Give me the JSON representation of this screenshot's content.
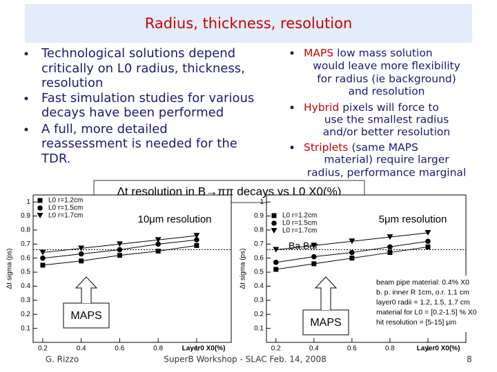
{
  "title": "Radius, thickness, resolution",
  "left_bullets": [
    {
      "lines": [
        "Technological solutions depend",
        "critically on L0 radius, thickness,",
        "resolution"
      ]
    },
    {
      "lines": [
        "Fast simulation studies for various",
        "decays have been performed"
      ]
    },
    {
      "lines": [
        "A full, more detailed",
        "reassessment is needed for the",
        "TDR."
      ]
    }
  ],
  "right_bullets": [
    {
      "keyword": "MAPS",
      "lines": [
        "low mass solution",
        "would leave more flexibility",
        "for radius (ie background)",
        "and resolution"
      ]
    },
    {
      "keyword": "Hybrid",
      "lines": [
        "pixels will force to",
        "use the smallest radius",
        "and/or better resolution"
      ]
    },
    {
      "keyword": "Striplets",
      "lines": [
        "(same MAPS",
        "material) require larger",
        "radius, performance marginal"
      ]
    }
  ],
  "section_title": "Δt resolution in B→ππ decays vs L0 X0(%)",
  "plots": [
    {
      "type": "scatter",
      "title": "10μm resolution",
      "y_label": "Δt sigma (ps)",
      "x_label": "Layer0 X0(%)",
      "xlim": [
        0.15,
        1.18
      ],
      "ylim": [
        0,
        1.05
      ],
      "xticks": [
        0.2,
        0.4,
        0.6,
        0.8,
        1
      ],
      "yticks": [
        0.1,
        0.2,
        0.3,
        0.4,
        0.5,
        0.6,
        0.7,
        0.8,
        0.9,
        1
      ],
      "x": [
        0.2,
        0.4,
        0.6,
        0.8,
        1.0
      ],
      "reference": 0.66,
      "series": [
        {
          "name": "L0 r=1.2cm",
          "marker": "square",
          "values": [
            0.55,
            0.58,
            0.62,
            0.65,
            0.69
          ]
        },
        {
          "name": "L0 r=1.5cm",
          "marker": "circle",
          "values": [
            0.6,
            0.63,
            0.66,
            0.7,
            0.73
          ]
        },
        {
          "name": "L0 r=1.7cm",
          "marker": "triangle",
          "values": [
            0.64,
            0.67,
            0.7,
            0.73,
            0.76
          ]
        }
      ]
    },
    {
      "type": "scatter",
      "title": "5μm resolution",
      "y_label": "Δt sigma (ps)",
      "x_label": "Layer0 X0(%)",
      "reference_label": "Ba.Bar",
      "xlim": [
        0.15,
        1.2
      ],
      "ylim": [
        0,
        1.05
      ],
      "xticks": [
        0.2,
        0.4,
        0.6,
        0.8,
        1
      ],
      "yticks": [
        0.1,
        0.2,
        0.3,
        0.4,
        0.5,
        0.6,
        0.7,
        0.8,
        0.9,
        1
      ],
      "x": [
        0.2,
        0.4,
        0.6,
        0.8,
        1.0
      ],
      "reference": 0.66,
      "series": [
        {
          "name": "L0 r=1.2cm",
          "marker": "square",
          "values": [
            0.52,
            0.56,
            0.6,
            0.64,
            0.68
          ]
        },
        {
          "name": "L0 r=1.5cm",
          "marker": "circle",
          "values": [
            0.57,
            0.61,
            0.64,
            0.68,
            0.72
          ]
        },
        {
          "name": "L0 r=1.7cm",
          "marker": "triangle",
          "values": [
            0.66,
            0.69,
            0.72,
            0.75,
            0.78
          ]
        }
      ]
    }
  ],
  "callouts": [
    "MAPS",
    "MAPS"
  ],
  "notes": [
    "beam pipe material: 0.4% X0",
    "b. p. inner R 1cm, o.r. 1.1 cm",
    "layer0 radii = 1.2, 1.5, 1.7 cm",
    "material for L0 = [0.2-1.5] % X0",
    "hit resolution = [5-15] μm"
  ],
  "footer": {
    "author": "G. Rizzo",
    "event": "SuperB Workshop - SLAC Feb. 14, 2008",
    "page": "8"
  }
}
